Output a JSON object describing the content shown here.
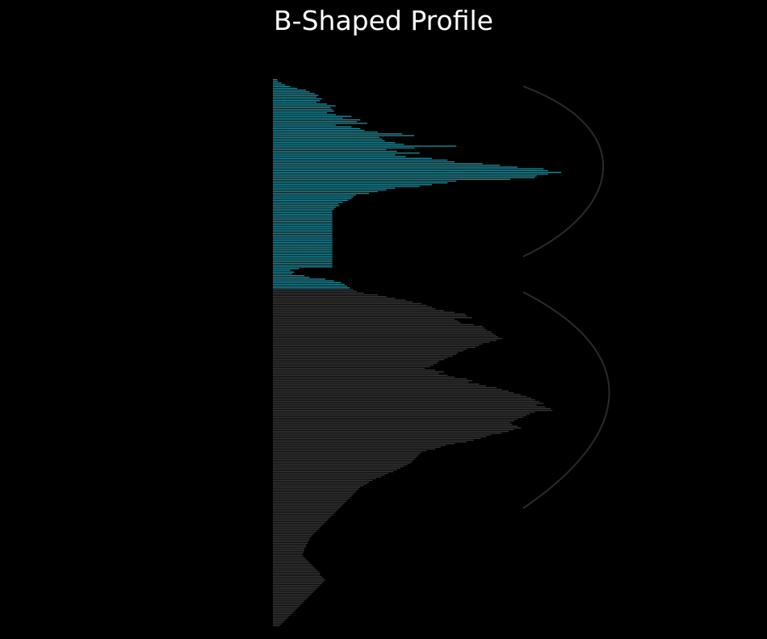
{
  "title": "B-Shaped Profile",
  "chart_data": {
    "type": "bar",
    "orientation": "horizontal",
    "title": "B-Shaped Profile",
    "xlabel": "",
    "ylabel": "",
    "grid": false,
    "legend": "none",
    "levels_order": "top-to-bottom",
    "highlight_count": 120,
    "colors": {
      "highlight": "#1f8f9e",
      "base": "#3a3a3a",
      "bracket": "#2a2a2a",
      "background": "#000000",
      "title": "#ffffff"
    },
    "values": [
      5,
      6,
      10,
      14,
      20,
      28,
      38,
      42,
      48,
      52,
      50,
      56,
      54,
      50,
      62,
      72,
      66,
      68,
      70,
      62,
      72,
      90,
      80,
      100,
      96,
      108,
      72,
      90,
      100,
      105,
      120,
      148,
      162,
      122,
      125,
      128,
      140,
      150,
      210,
      162,
      130,
      142,
      168,
      140,
      152,
      182,
      200,
      208,
      240,
      260,
      280,
      310,
      315,
      330,
      315,
      302,
      300,
      272,
      210,
      200,
      182,
      168,
      140,
      130,
      120,
      110,
      95,
      92,
      90,
      86,
      80,
      75,
      76,
      72,
      70,
      68,
      68,
      68,
      68,
      68,
      68,
      68,
      68,
      68,
      68,
      68,
      68,
      68,
      68,
      68,
      68,
      68,
      68,
      68,
      68,
      68,
      68,
      68,
      68,
      68,
      68,
      68,
      68,
      68,
      68,
      68,
      68,
      68,
      30,
      20,
      24,
      22,
      36,
      42,
      60,
      70,
      78,
      82,
      85,
      88,
      92,
      96,
      104,
      120,
      130,
      140,
      152,
      160,
      170,
      176,
      182,
      186,
      196,
      208,
      220,
      222,
      228,
      208,
      212,
      215,
      230,
      240,
      242,
      245,
      250,
      252,
      255,
      258,
      262,
      256,
      248,
      240,
      236,
      232,
      222,
      218,
      212,
      210,
      206,
      200,
      196,
      190,
      188,
      184,
      180,
      174,
      186,
      196,
      190,
      200,
      208,
      222,
      228,
      224,
      236,
      244,
      256,
      262,
      270,
      276,
      284,
      290,
      296,
      300,
      305,
      310,
      302,
      312,
      318,
      320,
      300,
      294,
      290,
      286,
      280,
      276,
      272,
      274,
      280,
      284,
      276,
      270,
      262,
      250,
      244,
      238,
      230,
      222,
      208,
      198,
      192,
      186,
      176,
      170,
      168,
      166,
      164,
      162,
      160,
      158,
      154,
      150,
      146,
      142,
      138,
      132,
      128,
      124,
      118,
      114,
      110,
      108,
      104,
      100,
      98,
      96,
      94,
      92,
      90,
      88,
      86,
      84,
      82,
      80,
      78,
      76,
      74,
      72,
      70,
      68,
      66,
      64,
      62,
      60,
      58,
      56,
      54,
      52,
      50,
      48,
      46,
      44,
      42,
      42,
      40,
      40,
      38,
      38,
      36,
      36,
      35,
      34,
      34,
      36,
      38,
      40,
      42,
      44,
      46,
      48,
      50,
      52,
      54,
      54,
      56,
      58,
      60,
      58,
      56,
      54,
      52,
      50,
      48,
      46,
      44,
      42,
      40,
      38,
      36,
      34,
      32,
      30,
      28,
      26,
      24,
      22,
      20,
      18,
      16,
      14,
      12,
      10,
      8
    ]
  }
}
